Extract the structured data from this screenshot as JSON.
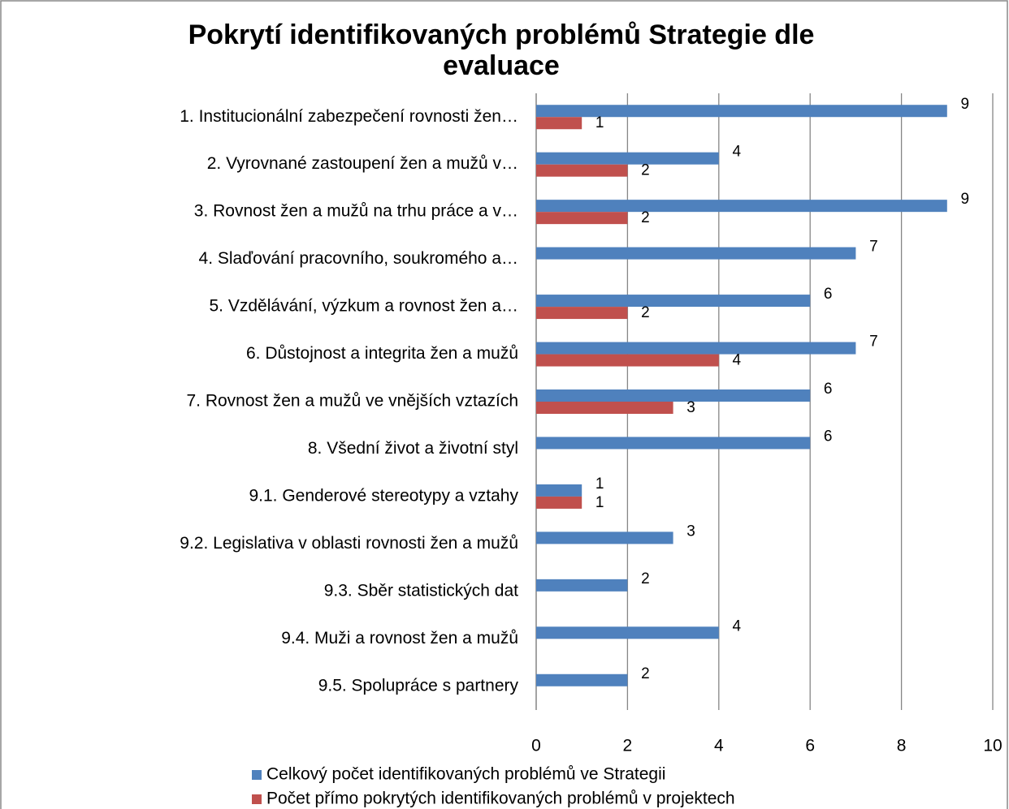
{
  "chart_data": {
    "type": "bar",
    "orientation": "horizontal",
    "title": "Pokrytí identifikovaných problémů Strategie dle evaluace",
    "categories": [
      "1. Institucionální zabezpečení rovnosti žen…",
      "2. Vyrovnané zastoupení žen a mužů v…",
      "3. Rovnost žen a mužů na trhu práce a v…",
      "4. Slaďování pracovního, soukromého a…",
      "5. Vzdělávání, výzkum a rovnost žen a…",
      "6. Důstojnost a integrita žen a mužů",
      "7. Rovnost žen a mužů ve vnějších vztazích",
      "8. Všední život a životní styl",
      "9.1. Genderové stereotypy a vztahy",
      "9.2. Legislativa v oblasti rovnosti žen a mužů",
      "9.3. Sběr statistických dat",
      "9.4. Muži a rovnost žen a mužů",
      "9.5. Spolupráce s partnery"
    ],
    "series": [
      {
        "name": "Celkový počet identifikovaných problémů ve Strategii",
        "color": "#4f81bd",
        "values": [
          9,
          4,
          9,
          7,
          6,
          7,
          6,
          6,
          1,
          3,
          2,
          4,
          2
        ]
      },
      {
        "name": "Počet přímo pokrytých identifikovaných problémů v projektech",
        "color": "#c0504d",
        "values": [
          1,
          2,
          2,
          null,
          2,
          4,
          3,
          null,
          1,
          null,
          null,
          null,
          null
        ]
      }
    ],
    "xlim": [
      0,
      10
    ],
    "xticks": [
      0,
      2,
      4,
      6,
      8,
      10
    ],
    "grid": true,
    "legend": "bottom"
  }
}
